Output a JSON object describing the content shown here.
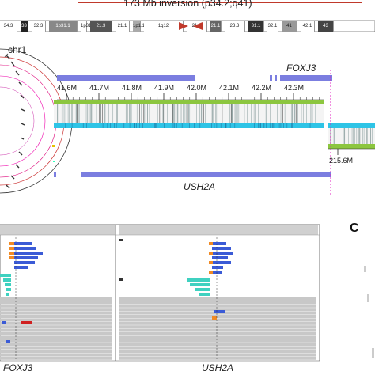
{
  "header": {
    "title": "173 Mb inversion (p34.2;q41)"
  },
  "ideogram": {
    "bands": [
      "34.3",
      "33",
      "32.3",
      "1p31.1",
      "1p31.1",
      "21.3",
      "21.1",
      "1p1.1",
      "1q12",
      "21.1",
      "21.1",
      "23.3",
      "31.1",
      "32.1",
      "41",
      "42.1",
      "43"
    ]
  },
  "panel_a": {
    "chromosome": "chr1",
    "gene_top": "FOXJ3",
    "gene_bottom": "USH2A",
    "ticks_top": [
      "41.6M",
      "41.7M",
      "41.8M",
      "41.9M",
      "42.0M",
      "42.1M",
      "42.2M",
      "42.3M"
    ],
    "tick_bottom": "215.6M"
  },
  "panel_b": {
    "left_label": "FOXJ3",
    "right_label": "USH2A"
  },
  "panel_c": {
    "letter": "C"
  },
  "colors": {
    "inversion_line": "#c0392b",
    "gene_bar": "#7b7ee0",
    "magenta_line": "#e020c0",
    "cyan_track": "#2ec4e6",
    "green_track": "#8cc63f",
    "read_gray": "#c8c8c8",
    "read_blue": "#3b5bd6",
    "read_orange": "#f08a24",
    "read_teal": "#3fd1c0"
  }
}
